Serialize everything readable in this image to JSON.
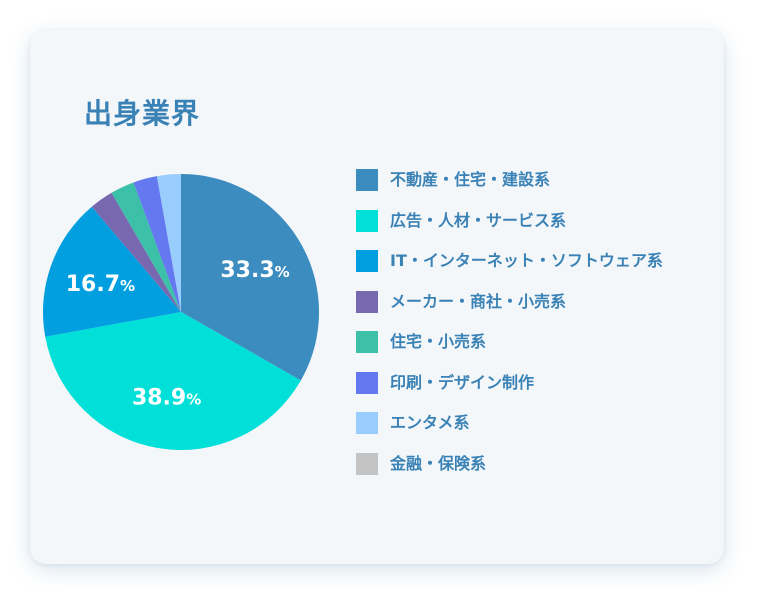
{
  "title": "出身業界",
  "chart_data": {
    "type": "pie",
    "categories": [
      "不動産・住宅・建設系",
      "広告・人材・サービス系",
      "IT・インターネット・ソフトウェア系",
      "メーカー・商社・小売系",
      "住宅・小売系",
      "印刷・デザイン制作",
      "エンタメ系",
      "金融・保険系"
    ],
    "values": [
      33.3,
      38.9,
      16.7,
      2.8,
      2.8,
      2.8,
      2.8,
      0
    ],
    "colors": [
      "#3c8cc0",
      "#00e0d8",
      "#019fe0",
      "#7868b0",
      "#3cc0a8",
      "#6478f0",
      "#98cdfd",
      "#c4c4c4"
    ],
    "data_labels": [
      {
        "value": "33.3",
        "unit": "%"
      },
      {
        "value": "38.9",
        "unit": "%"
      },
      {
        "value": "16.7",
        "unit": "%"
      }
    ],
    "legend_position": "right"
  }
}
